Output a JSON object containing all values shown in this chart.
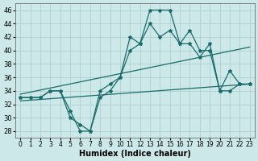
{
  "xlabel": "Humidex (Indice chaleur)",
  "bg_color": "#cce8e8",
  "grid_color": "#aacccc",
  "line_color": "#1a6b6b",
  "xlim": [
    -0.5,
    23.5
  ],
  "ylim": [
    27,
    47
  ],
  "yticks": [
    28,
    30,
    32,
    34,
    36,
    38,
    40,
    42,
    44,
    46
  ],
  "xticks": [
    0,
    1,
    2,
    3,
    4,
    5,
    6,
    7,
    8,
    9,
    10,
    11,
    12,
    13,
    14,
    15,
    16,
    17,
    18,
    19,
    20,
    21,
    22,
    23
  ],
  "line1_x": [
    0,
    1,
    2,
    3,
    4,
    5,
    6,
    7,
    8,
    9,
    10,
    11,
    12,
    13,
    14,
    15,
    16,
    17,
    18,
    19,
    20,
    21,
    22,
    23
  ],
  "line1_y": [
    33,
    33,
    33,
    34,
    34,
    31,
    28,
    28,
    34,
    35,
    36,
    42,
    41,
    46,
    46,
    46,
    41,
    43,
    40,
    40,
    34,
    37,
    35,
    35
  ],
  "line2_x": [
    0,
    1,
    2,
    3,
    4,
    5,
    6,
    7,
    8,
    9,
    10,
    11,
    12,
    13,
    14,
    15,
    16,
    17,
    18,
    19,
    20,
    21,
    22,
    23
  ],
  "line2_y": [
    33,
    33,
    33,
    34,
    34,
    30,
    29,
    28,
    33,
    34,
    36,
    40,
    41,
    44,
    42,
    43,
    41,
    41,
    39,
    41,
    34,
    34,
    35,
    35
  ],
  "trend1_x": [
    0,
    23
  ],
  "trend1_y": [
    33.5,
    40.5
  ],
  "trend2_x": [
    0,
    23
  ],
  "trend2_y": [
    32.5,
    35.0
  ],
  "markersize": 3,
  "linewidth": 0.9
}
